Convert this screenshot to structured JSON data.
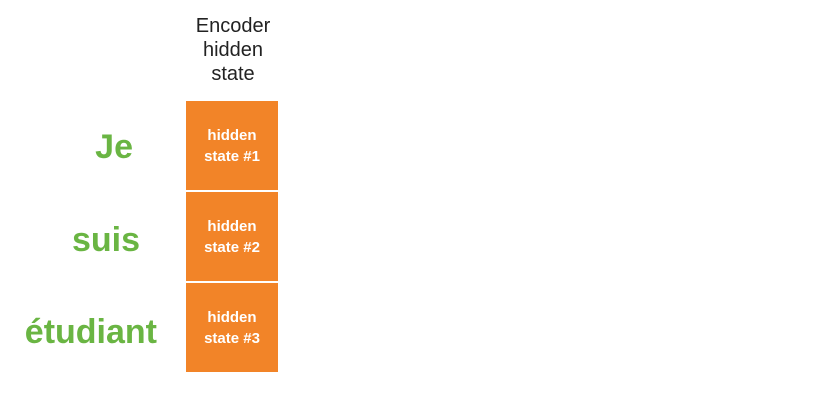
{
  "header": {
    "label": "Encoder\nhidden\nstate"
  },
  "words": [
    {
      "text": "Je"
    },
    {
      "text": "suis"
    },
    {
      "text": "étudiant"
    }
  ],
  "hidden_states": [
    {
      "label": "hidden\nstate #1"
    },
    {
      "label": "hidden\nstate #2"
    },
    {
      "label": "hidden\nstate #3"
    }
  ],
  "colors": {
    "word_green": "#6ab543",
    "state_orange": "#f28428",
    "header_text": "#222222"
  }
}
